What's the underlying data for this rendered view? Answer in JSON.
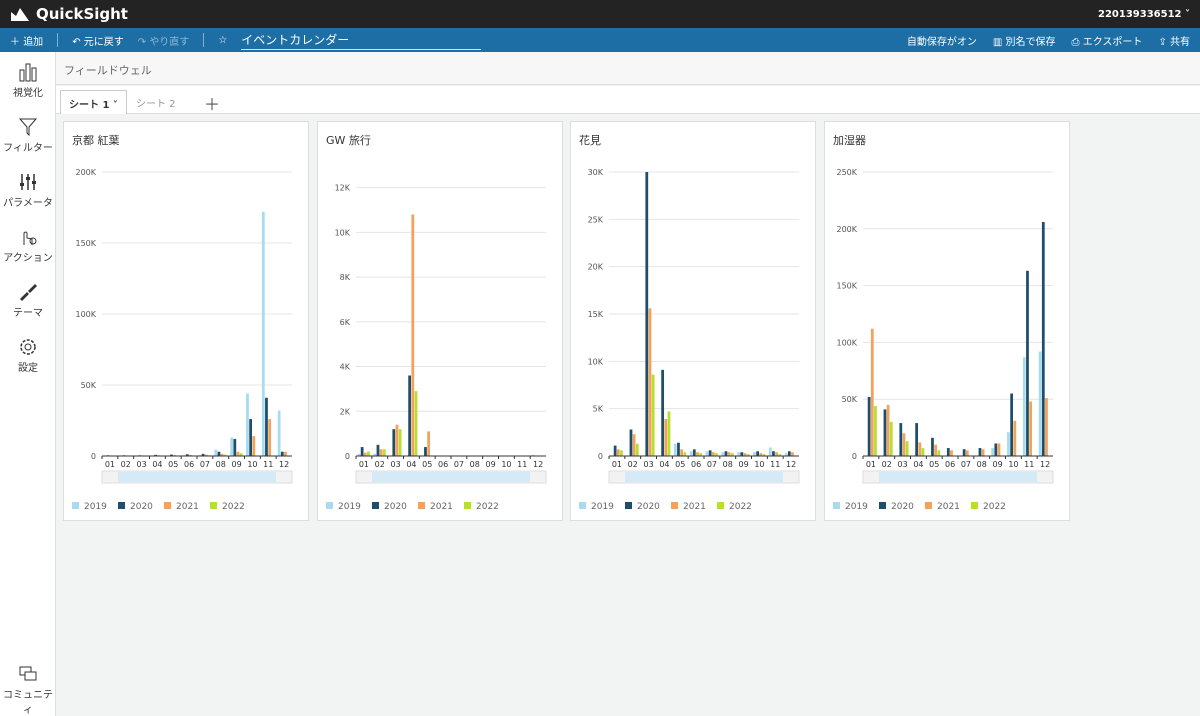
{
  "app": {
    "logo": "QuickSight",
    "account": "220139336512"
  },
  "toolbar": {
    "add": "追加",
    "undo": "元に戻す",
    "redo": "やり直す",
    "title": "イベントカレンダー",
    "autosave": "自動保存がオン",
    "save_as": "別名で保存",
    "export": "エクスポート",
    "share": "共有"
  },
  "sidebar": [
    "視覚化",
    "フィルター",
    "パラメータ",
    "アクション",
    "テーマ",
    "設定",
    "コミュニティ"
  ],
  "field_well": "フィールドウェル",
  "sheets": [
    "シート 1",
    "シート 2"
  ],
  "chart_data": [
    {
      "type": "bar",
      "title": "京都 紅葉",
      "categories": [
        "01",
        "02",
        "03",
        "04",
        "05",
        "06",
        "07",
        "08",
        "09",
        "10",
        "11",
        "12"
      ],
      "series": [
        {
          "name": "2019",
          "color": "#a6dcee",
          "values": [
            300,
            300,
            300,
            300,
            400,
            500,
            700,
            4500,
            13000,
            44000,
            172000,
            32000
          ]
        },
        {
          "name": "2020",
          "color": "#1f4e6b",
          "values": [
            500,
            500,
            500,
            800,
            1000,
            1200,
            1500,
            3000,
            12000,
            26000,
            41000,
            3000
          ]
        },
        {
          "name": "2021",
          "color": "#f4a259",
          "values": [
            300,
            300,
            400,
            500,
            600,
            700,
            900,
            1500,
            3000,
            14000,
            26000,
            3000
          ]
        },
        {
          "name": "2022",
          "color": "#b5e02c",
          "values": [
            200,
            200,
            200,
            300,
            300,
            400,
            500,
            1000,
            2000,
            0,
            0,
            0
          ]
        }
      ],
      "ylim": [
        0,
        200000
      ],
      "yticks": [
        0,
        {
          "value": 50000,
          "label": "50K"
        },
        {
          "value": 100000,
          "label": "100K"
        },
        {
          "value": 150000,
          "label": "150K"
        },
        {
          "value": 200000,
          "label": "200K"
        }
      ],
      "grid": true
    },
    {
      "type": "bar",
      "title": "GW 旅行",
      "categories": [
        "01",
        "02",
        "03",
        "04",
        "05",
        "06",
        "07",
        "08",
        "09",
        "10",
        "11",
        "12"
      ],
      "series": [
        {
          "name": "2019",
          "color": "#a6dcee",
          "values": [
            100,
            100,
            0,
            0,
            0,
            0,
            0,
            0,
            0,
            0,
            0,
            50
          ]
        },
        {
          "name": "2020",
          "color": "#1f4e6b",
          "values": [
            400,
            500,
            1200,
            3600,
            400,
            0,
            0,
            0,
            0,
            0,
            0,
            0
          ]
        },
        {
          "name": "2021",
          "color": "#f4a259",
          "values": [
            150,
            300,
            1400,
            10800,
            1100,
            0,
            0,
            0,
            0,
            0,
            0,
            0
          ]
        },
        {
          "name": "2022",
          "color": "#b5e02c",
          "values": [
            200,
            300,
            1200,
            2900,
            0,
            0,
            0,
            0,
            0,
            0,
            0,
            0
          ]
        }
      ],
      "ylim": [
        0,
        12700
      ],
      "yticks": [
        0,
        {
          "value": 2000,
          "label": "2K"
        },
        {
          "value": 4000,
          "label": "4K"
        },
        {
          "value": 6000,
          "label": "6K"
        },
        {
          "value": 8000,
          "label": "8K"
        },
        {
          "value": 10000,
          "label": "10K"
        },
        {
          "value": 12000,
          "label": "12K"
        }
      ],
      "grid": true
    },
    {
      "type": "bar",
      "title": "花見",
      "categories": [
        "01",
        "02",
        "03",
        "04",
        "05",
        "06",
        "07",
        "08",
        "09",
        "10",
        "11",
        "12"
      ],
      "series": [
        {
          "name": "2019",
          "color": "#a6dcee",
          "values": [
            0,
            0,
            0,
            0,
            1300,
            500,
            500,
            400,
            400,
            400,
            900,
            300
          ]
        },
        {
          "name": "2020",
          "color": "#1f4e6b",
          "values": [
            1100,
            2800,
            30000,
            9100,
            1400,
            700,
            600,
            500,
            400,
            500,
            500,
            500
          ]
        },
        {
          "name": "2021",
          "color": "#f4a259",
          "values": [
            700,
            2300,
            15600,
            3900,
            700,
            400,
            400,
            400,
            300,
            300,
            400,
            400
          ]
        },
        {
          "name": "2022",
          "color": "#b5e02c",
          "values": [
            600,
            1300,
            8600,
            4700,
            400,
            300,
            300,
            300,
            200,
            200,
            200,
            0
          ]
        }
      ],
      "ylim": [
        0,
        30000
      ],
      "yticks": [
        0,
        {
          "value": 5000,
          "label": "5K"
        },
        {
          "value": 10000,
          "label": "10K"
        },
        {
          "value": 15000,
          "label": "15K"
        },
        {
          "value": 20000,
          "label": "20K"
        },
        {
          "value": 25000,
          "label": "25K"
        },
        {
          "value": 30000,
          "label": "30K"
        }
      ],
      "grid": true
    },
    {
      "type": "bar",
      "title": "加湿器",
      "categories": [
        "01",
        "02",
        "03",
        "04",
        "05",
        "06",
        "07",
        "08",
        "09",
        "10",
        "11",
        "12"
      ],
      "series": [
        {
          "name": "2019",
          "color": "#a6dcee",
          "values": [
            0,
            0,
            0,
            0,
            0,
            0,
            0,
            0,
            7000,
            21000,
            87000,
            92000
          ]
        },
        {
          "name": "2020",
          "color": "#1f4e6b",
          "values": [
            52000,
            41000,
            29000,
            29000,
            16000,
            7000,
            6000,
            7000,
            11000,
            55000,
            163000,
            206000
          ]
        },
        {
          "name": "2021",
          "color": "#f4a259",
          "values": [
            112000,
            45000,
            20000,
            12000,
            10000,
            5000,
            5000,
            6000,
            11000,
            31000,
            48000,
            51000
          ]
        },
        {
          "name": "2022",
          "color": "#b5e02c",
          "values": [
            44000,
            30000,
            13000,
            7000,
            5000,
            0,
            0,
            0,
            0,
            0,
            0,
            0
          ]
        }
      ],
      "ylim": [
        0,
        250000
      ],
      "yticks": [
        0,
        {
          "value": 50000,
          "label": "50K"
        },
        {
          "value": 100000,
          "label": "100K"
        },
        {
          "value": 150000,
          "label": "150K"
        },
        {
          "value": 200000,
          "label": "200K"
        },
        {
          "value": 250000,
          "label": "250K"
        }
      ],
      "grid": true
    }
  ]
}
